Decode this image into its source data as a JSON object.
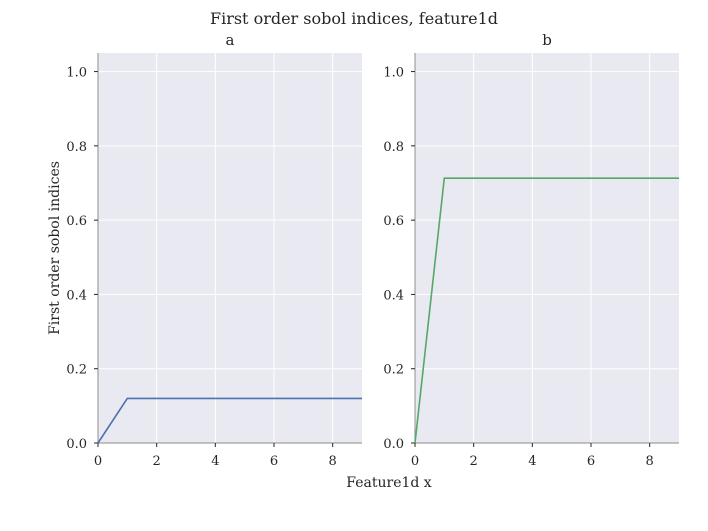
{
  "figure": {
    "suptitle": "First order sobol indices, feature1d",
    "xlabel": "Feature1d x",
    "ylabel": "First order sobol indices"
  },
  "style": {
    "panel_background": "#e8e9f1",
    "grid_color": "#ffffff",
    "spine_color": "#a0a0a0"
  },
  "chart_data": [
    {
      "type": "line",
      "title": "a",
      "xlim": [
        0,
        9
      ],
      "ylim": [
        0,
        1.05
      ],
      "xticks": [
        "0",
        "2",
        "4",
        "6",
        "8"
      ],
      "yticks": [
        "0.0",
        "0.2",
        "0.4",
        "0.6",
        "0.8",
        "1.0"
      ],
      "grid": true,
      "series": [
        {
          "color": "#4c72b0",
          "x": [
            0,
            1,
            2,
            3,
            4,
            5,
            6,
            7,
            8,
            9
          ],
          "y": [
            0.0,
            0.12,
            0.12,
            0.12,
            0.12,
            0.12,
            0.12,
            0.12,
            0.12,
            0.12
          ]
        }
      ]
    },
    {
      "type": "line",
      "title": "b",
      "xlim": [
        0,
        9
      ],
      "ylim": [
        0,
        1.05
      ],
      "xticks": [
        "0",
        "2",
        "4",
        "6",
        "8"
      ],
      "yticks": [
        "0.0",
        "0.2",
        "0.4",
        "0.6",
        "0.8",
        "1.0"
      ],
      "grid": true,
      "series": [
        {
          "color": "#55a868",
          "x": [
            0,
            1,
            2,
            3,
            4,
            5,
            6,
            7,
            8,
            9
          ],
          "y": [
            0.0,
            0.713,
            0.713,
            0.713,
            0.713,
            0.713,
            0.713,
            0.713,
            0.713,
            0.713
          ]
        }
      ]
    }
  ]
}
